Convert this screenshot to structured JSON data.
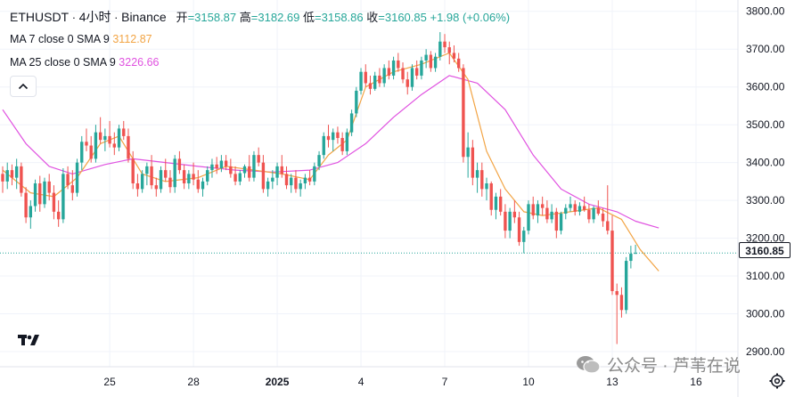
{
  "header": {
    "symbol": "ETHUSDT",
    "interval": "4小时",
    "exchange": "Binance",
    "dot": "·",
    "open_label": "开",
    "open": "=3158.87",
    "high_label": "高",
    "high": "=3182.69",
    "low_label": "低",
    "low": "=3158.86",
    "close_label": "收",
    "close": "=3160.85",
    "change": "+1.98 (+0.06%)"
  },
  "indicators": {
    "ma7": {
      "label": "MA 7 close 0 SMA 9",
      "value": "3112.87"
    },
    "ma25": {
      "label": "MA 25 close 0 SMA 9",
      "value": "3226.66"
    }
  },
  "current_price": "3160.85",
  "watermark": {
    "text": "公众号 · 芦苇在说"
  },
  "colors": {
    "up": "#26a69a",
    "down": "#ef5350",
    "ma7": "#f2a444",
    "ma25": "#e052e0",
    "grid": "#f0f3fa"
  },
  "icons": {
    "collapse": "chevron-up-icon",
    "logo": "tradingview-logo-icon",
    "settings": "settings-icon",
    "wechat": "wechat-icon"
  },
  "chart_data": {
    "type": "candlestick",
    "title": "ETHUSDT · 4小时 · Binance",
    "ylim": [
      2860,
      3830
    ],
    "y_ticks": [
      2900,
      3000,
      3100,
      3200,
      3300,
      3400,
      3500,
      3600,
      3700,
      3800
    ],
    "y_tick_labels": [
      "2900.00",
      "3000.00",
      "3100.00",
      "3200.00",
      "3300.00",
      "3400.00",
      "3500.00",
      "3600.00",
      "3700.00",
      "3800.00"
    ],
    "x_ticks": [
      {
        "label": "25",
        "index": 23
      },
      {
        "label": "28",
        "index": 41
      },
      {
        "label": "2025",
        "index": 59
      },
      {
        "label": "4",
        "index": 77
      },
      {
        "label": "7",
        "index": 95
      },
      {
        "label": "10",
        "index": 113
      },
      {
        "label": "13",
        "index": 131
      },
      {
        "label": "16",
        "index": 149
      }
    ],
    "index_count": 152,
    "series": [
      {
        "name": "ETHUSDT",
        "candles": [
          [
            3370,
            3390,
            3320,
            3350
          ],
          [
            3350,
            3400,
            3330,
            3380
          ],
          [
            3380,
            3395,
            3340,
            3360
          ],
          [
            3360,
            3410,
            3330,
            3390
          ],
          [
            3390,
            3400,
            3310,
            3320
          ],
          [
            3320,
            3335,
            3240,
            3255
          ],
          [
            3255,
            3300,
            3225,
            3285
          ],
          [
            3285,
            3355,
            3270,
            3345
          ],
          [
            3345,
            3365,
            3270,
            3290
          ],
          [
            3290,
            3360,
            3280,
            3350
          ],
          [
            3350,
            3370,
            3300,
            3320
          ],
          [
            3320,
            3340,
            3250,
            3270
          ],
          [
            3270,
            3300,
            3230,
            3250
          ],
          [
            3250,
            3385,
            3240,
            3370
          ],
          [
            3370,
            3390,
            3330,
            3340
          ],
          [
            3340,
            3380,
            3300,
            3320
          ],
          [
            3320,
            3410,
            3310,
            3400
          ],
          [
            3400,
            3470,
            3380,
            3455
          ],
          [
            3455,
            3490,
            3430,
            3445
          ],
          [
            3445,
            3470,
            3400,
            3410
          ],
          [
            3410,
            3500,
            3400,
            3480
          ],
          [
            3480,
            3520,
            3450,
            3460
          ],
          [
            3460,
            3490,
            3430,
            3470
          ],
          [
            3470,
            3510,
            3440,
            3450
          ],
          [
            3450,
            3480,
            3420,
            3440
          ],
          [
            3440,
            3500,
            3430,
            3490
          ],
          [
            3490,
            3510,
            3460,
            3470
          ],
          [
            3470,
            3490,
            3400,
            3410
          ],
          [
            3410,
            3430,
            3330,
            3345
          ],
          [
            3345,
            3370,
            3310,
            3330
          ],
          [
            3330,
            3380,
            3320,
            3370
          ],
          [
            3370,
            3400,
            3340,
            3390
          ],
          [
            3390,
            3420,
            3330,
            3340
          ],
          [
            3340,
            3360,
            3310,
            3330
          ],
          [
            3330,
            3390,
            3320,
            3380
          ],
          [
            3380,
            3410,
            3350,
            3360
          ],
          [
            3360,
            3380,
            3320,
            3335
          ],
          [
            3335,
            3420,
            3320,
            3410
          ],
          [
            3410,
            3430,
            3370,
            3380
          ],
          [
            3380,
            3395,
            3330,
            3345
          ],
          [
            3345,
            3380,
            3330,
            3370
          ],
          [
            3370,
            3400,
            3340,
            3355
          ],
          [
            3355,
            3380,
            3320,
            3330
          ],
          [
            3330,
            3360,
            3310,
            3350
          ],
          [
            3350,
            3390,
            3340,
            3380
          ],
          [
            3380,
            3410,
            3360,
            3395
          ],
          [
            3395,
            3415,
            3370,
            3385
          ],
          [
            3385,
            3420,
            3375,
            3405
          ],
          [
            3405,
            3420,
            3380,
            3390
          ],
          [
            3390,
            3410,
            3360,
            3370
          ],
          [
            3370,
            3390,
            3340,
            3350
          ],
          [
            3350,
            3380,
            3340,
            3372
          ],
          [
            3372,
            3395,
            3360,
            3390
          ],
          [
            3390,
            3420,
            3350,
            3360
          ],
          [
            3360,
            3430,
            3350,
            3420
          ],
          [
            3420,
            3440,
            3390,
            3400
          ],
          [
            3400,
            3420,
            3320,
            3330
          ],
          [
            3330,
            3360,
            3310,
            3350
          ],
          [
            3350,
            3380,
            3330,
            3360
          ],
          [
            3360,
            3400,
            3340,
            3390
          ],
          [
            3390,
            3420,
            3360,
            3370
          ],
          [
            3370,
            3390,
            3330,
            3340
          ],
          [
            3340,
            3370,
            3320,
            3360
          ],
          [
            3360,
            3380,
            3320,
            3330
          ],
          [
            3330,
            3355,
            3310,
            3345
          ],
          [
            3345,
            3370,
            3330,
            3360
          ],
          [
            3360,
            3380,
            3340,
            3350
          ],
          [
            3350,
            3400,
            3340,
            3390
          ],
          [
            3390,
            3430,
            3380,
            3420
          ],
          [
            3420,
            3480,
            3410,
            3470
          ],
          [
            3470,
            3500,
            3440,
            3460
          ],
          [
            3460,
            3490,
            3430,
            3480
          ],
          [
            3480,
            3495,
            3450,
            3465
          ],
          [
            3465,
            3480,
            3420,
            3430
          ],
          [
            3430,
            3490,
            3420,
            3480
          ],
          [
            3480,
            3540,
            3470,
            3530
          ],
          [
            3530,
            3600,
            3520,
            3590
          ],
          [
            3590,
            3650,
            3580,
            3640
          ],
          [
            3640,
            3660,
            3600,
            3610
          ],
          [
            3610,
            3630,
            3580,
            3595
          ],
          [
            3595,
            3640,
            3590,
            3630
          ],
          [
            3630,
            3650,
            3600,
            3610
          ],
          [
            3610,
            3660,
            3600,
            3650
          ],
          [
            3650,
            3670,
            3620,
            3630
          ],
          [
            3630,
            3680,
            3620,
            3670
          ],
          [
            3670,
            3690,
            3640,
            3650
          ],
          [
            3650,
            3665,
            3610,
            3620
          ],
          [
            3620,
            3640,
            3580,
            3600
          ],
          [
            3600,
            3660,
            3590,
            3650
          ],
          [
            3650,
            3670,
            3620,
            3630
          ],
          [
            3630,
            3680,
            3620,
            3670
          ],
          [
            3670,
            3700,
            3650,
            3685
          ],
          [
            3685,
            3695,
            3640,
            3650
          ],
          [
            3650,
            3690,
            3640,
            3680
          ],
          [
            3680,
            3745,
            3670,
            3720
          ],
          [
            3720,
            3740,
            3690,
            3705
          ],
          [
            3705,
            3720,
            3660,
            3690
          ],
          [
            3690,
            3710,
            3665,
            3675
          ],
          [
            3675,
            3690,
            3640,
            3650
          ],
          [
            3650,
            3660,
            3400,
            3415
          ],
          [
            3415,
            3480,
            3360,
            3440
          ],
          [
            3440,
            3460,
            3340,
            3360
          ],
          [
            3360,
            3400,
            3320,
            3380
          ],
          [
            3380,
            3400,
            3310,
            3330
          ],
          [
            3330,
            3360,
            3300,
            3345
          ],
          [
            3345,
            3350,
            3260,
            3275
          ],
          [
            3275,
            3320,
            3250,
            3310
          ],
          [
            3310,
            3330,
            3260,
            3270
          ],
          [
            3270,
            3290,
            3200,
            3220
          ],
          [
            3220,
            3280,
            3200,
            3270
          ],
          [
            3270,
            3300,
            3240,
            3255
          ],
          [
            3255,
            3270,
            3180,
            3190
          ],
          [
            3190,
            3230,
            3160,
            3220
          ],
          [
            3220,
            3300,
            3210,
            3290
          ],
          [
            3290,
            3310,
            3250,
            3260
          ],
          [
            3260,
            3300,
            3240,
            3290
          ],
          [
            3290,
            3310,
            3260,
            3280
          ],
          [
            3280,
            3300,
            3240,
            3250
          ],
          [
            3250,
            3290,
            3240,
            3270
          ],
          [
            3270,
            3280,
            3200,
            3220
          ],
          [
            3220,
            3270,
            3210,
            3265
          ],
          [
            3265,
            3290,
            3250,
            3280
          ],
          [
            3280,
            3310,
            3270,
            3290
          ],
          [
            3290,
            3300,
            3260,
            3270
          ],
          [
            3270,
            3295,
            3260,
            3285
          ],
          [
            3285,
            3310,
            3270,
            3275
          ],
          [
            3275,
            3290,
            3240,
            3250
          ],
          [
            3250,
            3285,
            3240,
            3280
          ],
          [
            3280,
            3300,
            3260,
            3265
          ],
          [
            3265,
            3280,
            3230,
            3245
          ],
          [
            3245,
            3340,
            3210,
            3220
          ],
          [
            3220,
            3260,
            3050,
            3060
          ],
          [
            3060,
            3080,
            2920,
            3050
          ],
          [
            3050,
            3070,
            2990,
            3010
          ],
          [
            3010,
            3150,
            3000,
            3140
          ],
          [
            3140,
            3180,
            3120,
            3158.87
          ],
          [
            3158.87,
            3182.69,
            3158.86,
            3160.85
          ]
        ]
      }
    ],
    "ma7": [
      {
        "i": 0,
        "v": 3380
      },
      {
        "i": 6,
        "v": 3320
      },
      {
        "i": 11,
        "v": 3310
      },
      {
        "i": 16,
        "v": 3360
      },
      {
        "i": 21,
        "v": 3450
      },
      {
        "i": 25,
        "v": 3470
      },
      {
        "i": 30,
        "v": 3370
      },
      {
        "i": 35,
        "v": 3350
      },
      {
        "i": 42,
        "v": 3360
      },
      {
        "i": 48,
        "v": 3390
      },
      {
        "i": 54,
        "v": 3380
      },
      {
        "i": 60,
        "v": 3370
      },
      {
        "i": 66,
        "v": 3355
      },
      {
        "i": 70,
        "v": 3420
      },
      {
        "i": 74,
        "v": 3460
      },
      {
        "i": 78,
        "v": 3600
      },
      {
        "i": 84,
        "v": 3640
      },
      {
        "i": 90,
        "v": 3660
      },
      {
        "i": 96,
        "v": 3690
      },
      {
        "i": 100,
        "v": 3620
      },
      {
        "i": 104,
        "v": 3430
      },
      {
        "i": 108,
        "v": 3330
      },
      {
        "i": 112,
        "v": 3270
      },
      {
        "i": 116,
        "v": 3260
      },
      {
        "i": 122,
        "v": 3270
      },
      {
        "i": 128,
        "v": 3280
      },
      {
        "i": 133,
        "v": 3250
      },
      {
        "i": 137,
        "v": 3170
      },
      {
        "i": 141,
        "v": 3113
      }
    ],
    "ma25": [
      {
        "i": 0,
        "v": 3540
      },
      {
        "i": 5,
        "v": 3450
      },
      {
        "i": 10,
        "v": 3390
      },
      {
        "i": 15,
        "v": 3370
      },
      {
        "i": 22,
        "v": 3395
      },
      {
        "i": 28,
        "v": 3410
      },
      {
        "i": 35,
        "v": 3400
      },
      {
        "i": 42,
        "v": 3390
      },
      {
        "i": 50,
        "v": 3380
      },
      {
        "i": 58,
        "v": 3375
      },
      {
        "i": 66,
        "v": 3380
      },
      {
        "i": 72,
        "v": 3400
      },
      {
        "i": 78,
        "v": 3450
      },
      {
        "i": 84,
        "v": 3520
      },
      {
        "i": 90,
        "v": 3580
      },
      {
        "i": 96,
        "v": 3630
      },
      {
        "i": 102,
        "v": 3610
      },
      {
        "i": 108,
        "v": 3540
      },
      {
        "i": 114,
        "v": 3420
      },
      {
        "i": 120,
        "v": 3330
      },
      {
        "i": 126,
        "v": 3290
      },
      {
        "i": 132,
        "v": 3270
      },
      {
        "i": 136,
        "v": 3245
      },
      {
        "i": 141,
        "v": 3227
      }
    ]
  }
}
